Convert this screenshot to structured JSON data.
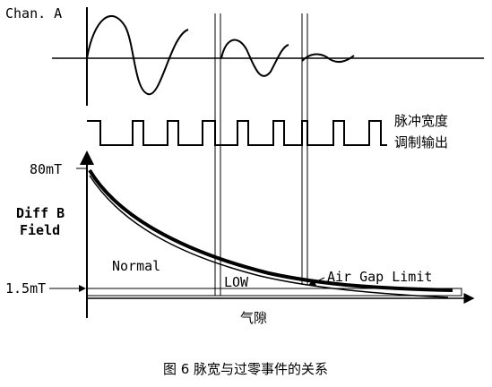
{
  "labels": {
    "channel": "Chan. A",
    "pwm_line1": "脉冲宽度",
    "pwm_line2": "调制输出",
    "level_high": "80mT",
    "y_axis_line1": "Diff B",
    "y_axis_line2": "Field",
    "normal": "Normal",
    "air_gap_limit": "Air Gap Limit",
    "low": "LOW",
    "level_low": "1.5mT",
    "x_axis": "气隙"
  },
  "caption": "图 6  脉宽与过零事件的关系"
}
